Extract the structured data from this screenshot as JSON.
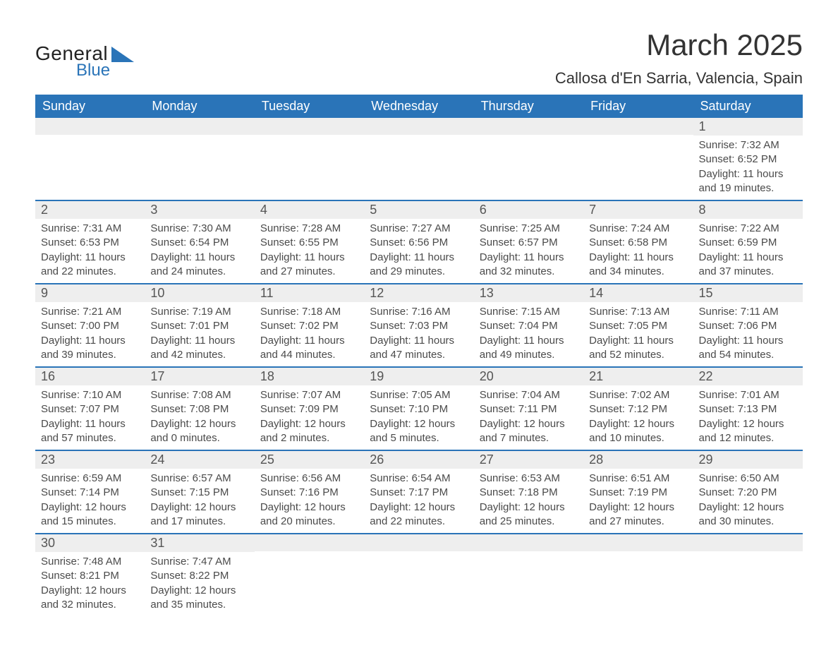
{
  "brand": {
    "line1": "General",
    "line2": "Blue"
  },
  "title": "March 2025",
  "location": "Callosa d'En Sarria, Valencia, Spain",
  "colors": {
    "header_bg": "#2a74b8",
    "header_text": "#ffffff",
    "row_stripe": "#eeeeee",
    "body_text": "#4a4a4a",
    "divider": "#2a74b8",
    "page_bg": "#ffffff"
  },
  "typography": {
    "title_fontsize": 42,
    "location_fontsize": 22,
    "header_fontsize": 18,
    "daynum_fontsize": 18,
    "body_fontsize": 15
  },
  "weekdays": [
    "Sunday",
    "Monday",
    "Tuesday",
    "Wednesday",
    "Thursday",
    "Friday",
    "Saturday"
  ],
  "weeks": [
    [
      {
        "empty": true
      },
      {
        "empty": true
      },
      {
        "empty": true
      },
      {
        "empty": true
      },
      {
        "empty": true
      },
      {
        "empty": true
      },
      {
        "n": "1",
        "sunrise": "Sunrise: 7:32 AM",
        "sunset": "Sunset: 6:52 PM",
        "dl1": "Daylight: 11 hours",
        "dl2": "and 19 minutes."
      }
    ],
    [
      {
        "n": "2",
        "sunrise": "Sunrise: 7:31 AM",
        "sunset": "Sunset: 6:53 PM",
        "dl1": "Daylight: 11 hours",
        "dl2": "and 22 minutes."
      },
      {
        "n": "3",
        "sunrise": "Sunrise: 7:30 AM",
        "sunset": "Sunset: 6:54 PM",
        "dl1": "Daylight: 11 hours",
        "dl2": "and 24 minutes."
      },
      {
        "n": "4",
        "sunrise": "Sunrise: 7:28 AM",
        "sunset": "Sunset: 6:55 PM",
        "dl1": "Daylight: 11 hours",
        "dl2": "and 27 minutes."
      },
      {
        "n": "5",
        "sunrise": "Sunrise: 7:27 AM",
        "sunset": "Sunset: 6:56 PM",
        "dl1": "Daylight: 11 hours",
        "dl2": "and 29 minutes."
      },
      {
        "n": "6",
        "sunrise": "Sunrise: 7:25 AM",
        "sunset": "Sunset: 6:57 PM",
        "dl1": "Daylight: 11 hours",
        "dl2": "and 32 minutes."
      },
      {
        "n": "7",
        "sunrise": "Sunrise: 7:24 AM",
        "sunset": "Sunset: 6:58 PM",
        "dl1": "Daylight: 11 hours",
        "dl2": "and 34 minutes."
      },
      {
        "n": "8",
        "sunrise": "Sunrise: 7:22 AM",
        "sunset": "Sunset: 6:59 PM",
        "dl1": "Daylight: 11 hours",
        "dl2": "and 37 minutes."
      }
    ],
    [
      {
        "n": "9",
        "sunrise": "Sunrise: 7:21 AM",
        "sunset": "Sunset: 7:00 PM",
        "dl1": "Daylight: 11 hours",
        "dl2": "and 39 minutes."
      },
      {
        "n": "10",
        "sunrise": "Sunrise: 7:19 AM",
        "sunset": "Sunset: 7:01 PM",
        "dl1": "Daylight: 11 hours",
        "dl2": "and 42 minutes."
      },
      {
        "n": "11",
        "sunrise": "Sunrise: 7:18 AM",
        "sunset": "Sunset: 7:02 PM",
        "dl1": "Daylight: 11 hours",
        "dl2": "and 44 minutes."
      },
      {
        "n": "12",
        "sunrise": "Sunrise: 7:16 AM",
        "sunset": "Sunset: 7:03 PM",
        "dl1": "Daylight: 11 hours",
        "dl2": "and 47 minutes."
      },
      {
        "n": "13",
        "sunrise": "Sunrise: 7:15 AM",
        "sunset": "Sunset: 7:04 PM",
        "dl1": "Daylight: 11 hours",
        "dl2": "and 49 minutes."
      },
      {
        "n": "14",
        "sunrise": "Sunrise: 7:13 AM",
        "sunset": "Sunset: 7:05 PM",
        "dl1": "Daylight: 11 hours",
        "dl2": "and 52 minutes."
      },
      {
        "n": "15",
        "sunrise": "Sunrise: 7:11 AM",
        "sunset": "Sunset: 7:06 PM",
        "dl1": "Daylight: 11 hours",
        "dl2": "and 54 minutes."
      }
    ],
    [
      {
        "n": "16",
        "sunrise": "Sunrise: 7:10 AM",
        "sunset": "Sunset: 7:07 PM",
        "dl1": "Daylight: 11 hours",
        "dl2": "and 57 minutes."
      },
      {
        "n": "17",
        "sunrise": "Sunrise: 7:08 AM",
        "sunset": "Sunset: 7:08 PM",
        "dl1": "Daylight: 12 hours",
        "dl2": "and 0 minutes."
      },
      {
        "n": "18",
        "sunrise": "Sunrise: 7:07 AM",
        "sunset": "Sunset: 7:09 PM",
        "dl1": "Daylight: 12 hours",
        "dl2": "and 2 minutes."
      },
      {
        "n": "19",
        "sunrise": "Sunrise: 7:05 AM",
        "sunset": "Sunset: 7:10 PM",
        "dl1": "Daylight: 12 hours",
        "dl2": "and 5 minutes."
      },
      {
        "n": "20",
        "sunrise": "Sunrise: 7:04 AM",
        "sunset": "Sunset: 7:11 PM",
        "dl1": "Daylight: 12 hours",
        "dl2": "and 7 minutes."
      },
      {
        "n": "21",
        "sunrise": "Sunrise: 7:02 AM",
        "sunset": "Sunset: 7:12 PM",
        "dl1": "Daylight: 12 hours",
        "dl2": "and 10 minutes."
      },
      {
        "n": "22",
        "sunrise": "Sunrise: 7:01 AM",
        "sunset": "Sunset: 7:13 PM",
        "dl1": "Daylight: 12 hours",
        "dl2": "and 12 minutes."
      }
    ],
    [
      {
        "n": "23",
        "sunrise": "Sunrise: 6:59 AM",
        "sunset": "Sunset: 7:14 PM",
        "dl1": "Daylight: 12 hours",
        "dl2": "and 15 minutes."
      },
      {
        "n": "24",
        "sunrise": "Sunrise: 6:57 AM",
        "sunset": "Sunset: 7:15 PM",
        "dl1": "Daylight: 12 hours",
        "dl2": "and 17 minutes."
      },
      {
        "n": "25",
        "sunrise": "Sunrise: 6:56 AM",
        "sunset": "Sunset: 7:16 PM",
        "dl1": "Daylight: 12 hours",
        "dl2": "and 20 minutes."
      },
      {
        "n": "26",
        "sunrise": "Sunrise: 6:54 AM",
        "sunset": "Sunset: 7:17 PM",
        "dl1": "Daylight: 12 hours",
        "dl2": "and 22 minutes."
      },
      {
        "n": "27",
        "sunrise": "Sunrise: 6:53 AM",
        "sunset": "Sunset: 7:18 PM",
        "dl1": "Daylight: 12 hours",
        "dl2": "and 25 minutes."
      },
      {
        "n": "28",
        "sunrise": "Sunrise: 6:51 AM",
        "sunset": "Sunset: 7:19 PM",
        "dl1": "Daylight: 12 hours",
        "dl2": "and 27 minutes."
      },
      {
        "n": "29",
        "sunrise": "Sunrise: 6:50 AM",
        "sunset": "Sunset: 7:20 PM",
        "dl1": "Daylight: 12 hours",
        "dl2": "and 30 minutes."
      }
    ],
    [
      {
        "n": "30",
        "sunrise": "Sunrise: 7:48 AM",
        "sunset": "Sunset: 8:21 PM",
        "dl1": "Daylight: 12 hours",
        "dl2": "and 32 minutes."
      },
      {
        "n": "31",
        "sunrise": "Sunrise: 7:47 AM",
        "sunset": "Sunset: 8:22 PM",
        "dl1": "Daylight: 12 hours",
        "dl2": "and 35 minutes."
      },
      {
        "empty": true
      },
      {
        "empty": true
      },
      {
        "empty": true
      },
      {
        "empty": true
      },
      {
        "empty": true
      }
    ]
  ]
}
